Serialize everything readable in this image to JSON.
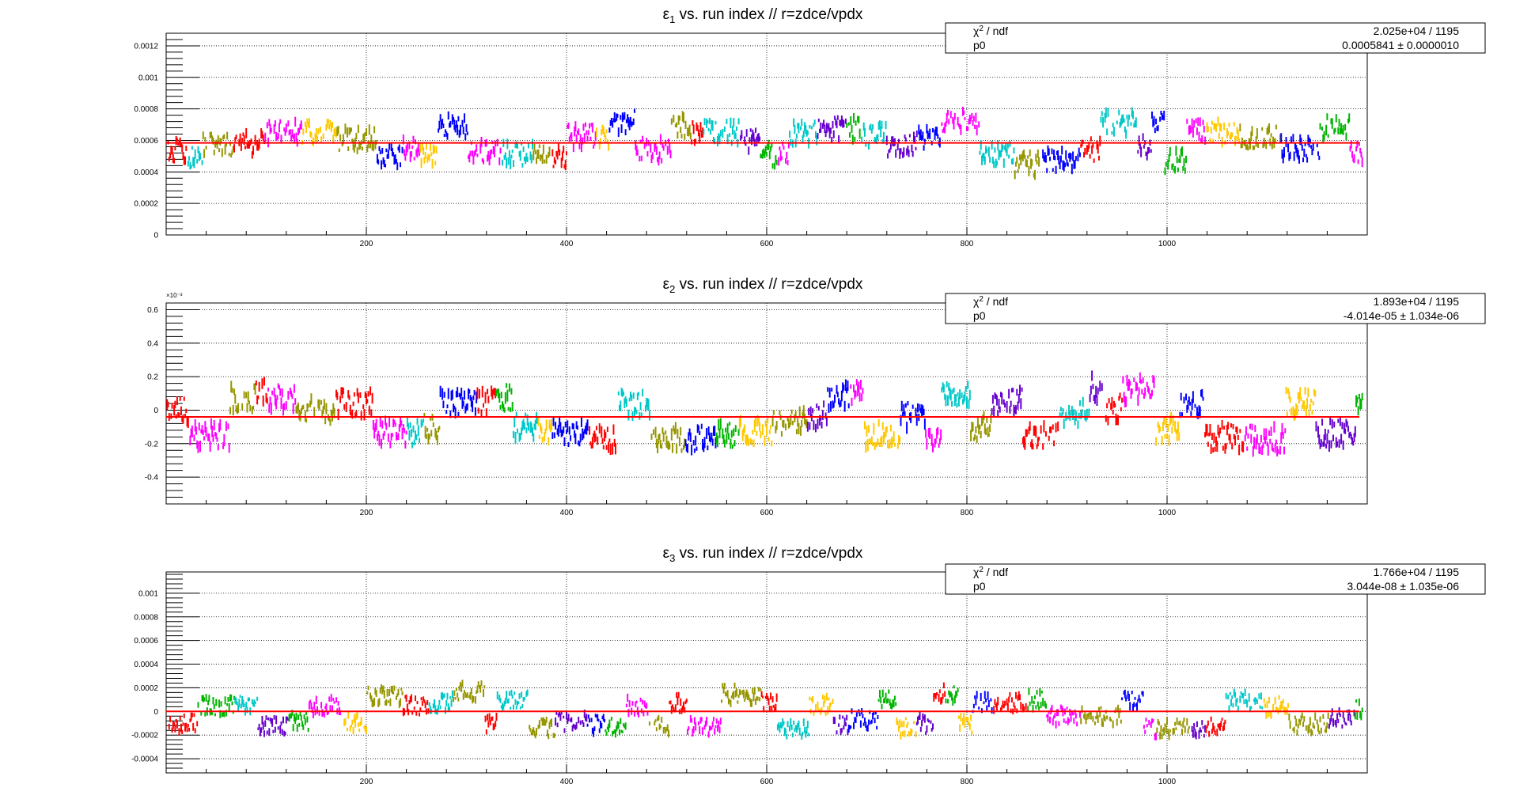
{
  "chart_data": [
    {
      "type": "scatter",
      "title_symbol": "ε",
      "title_subscript": "1",
      "title_rest": " vs. run index // r=zdce/vpdx",
      "xlabel": "",
      "ylabel": "",
      "xlim": [
        0,
        1200
      ],
      "ylim": [
        0,
        0.00128
      ],
      "xticks": [
        200,
        400,
        600,
        800,
        1000
      ],
      "xtick_labels": [
        "200",
        "400",
        "600",
        "800",
        "1000"
      ],
      "yticks": [
        0,
        0.0002,
        0.0004,
        0.0006,
        0.0008,
        0.001,
        0.0012
      ],
      "ytick_labels": [
        "0",
        "0.0002",
        "0.0004",
        "0.0006",
        "0.0008",
        "0.001",
        "0.0012"
      ],
      "y_exponent_label": "",
      "grid": true,
      "fit": {
        "name": "p0",
        "value": 0.0005841,
        "color": "#ff0000"
      },
      "stats": {
        "row1_label_base": "χ",
        "row1_label_sup": "2",
        "row1_label_rest": " / ndf",
        "row1_value": "2.025e+04 / 1195",
        "row2_label": "p0",
        "row2_value": "0.0005841 ± 0.0000010"
      },
      "series_note": "colored error bars, one color per run block",
      "data_profile": {
        "center": 0.00058,
        "spread": 0.00013,
        "seed": 11
      }
    },
    {
      "type": "scatter",
      "title_symbol": "ε",
      "title_subscript": "2",
      "title_rest": " vs. run index // r=zdce/vpdx",
      "xlabel": "",
      "ylabel": "",
      "xlim": [
        0,
        1200
      ],
      "ylim": [
        -0.56,
        0.64
      ],
      "xticks": [
        200,
        400,
        600,
        800,
        1000
      ],
      "xtick_labels": [
        "200",
        "400",
        "600",
        "800",
        "1000"
      ],
      "yticks": [
        -0.4,
        -0.2,
        0,
        0.2,
        0.4,
        0.6
      ],
      "ytick_labels": [
        "-0.4",
        "-0.2",
        "0",
        "0.2",
        "0.4",
        "0.6"
      ],
      "y_exponent_label": "×10⁻³",
      "grid": true,
      "fit": {
        "name": "p0",
        "value": -0.04014,
        "color": "#ff0000"
      },
      "stats": {
        "row1_label_base": "χ",
        "row1_label_sup": "2",
        "row1_label_rest": " / ndf",
        "row1_value": "1.893e+04 / 1195",
        "row2_label": "p0",
        "row2_value": "-4.014e-05 ± 1.034e-06"
      },
      "series_note": "colored error bars, one color per run block",
      "data_profile": {
        "center": -0.02,
        "spread": 0.14,
        "seed": 23
      }
    },
    {
      "type": "scatter",
      "title_symbol": "ε",
      "title_subscript": "3",
      "title_rest": " vs. run index // r=zdce/vpdx",
      "xlabel": "",
      "ylabel": "",
      "xlim": [
        0,
        1200
      ],
      "ylim": [
        -0.00052,
        0.00118
      ],
      "xticks": [
        200,
        400,
        600,
        800,
        1000
      ],
      "xtick_labels": [
        "200",
        "400",
        "600",
        "800",
        "1000"
      ],
      "yticks": [
        -0.0004,
        -0.0002,
        0,
        0.0002,
        0.0004,
        0.0006,
        0.0008,
        0.001
      ],
      "ytick_labels": [
        "-0.0004",
        "-0.0002",
        "0",
        "0.0002",
        "0.0004",
        "0.0006",
        "0.0008",
        "0.001"
      ],
      "y_exponent_label": "",
      "grid": true,
      "fit": {
        "name": "p0",
        "value": 3.044e-08,
        "color": "#ff0000"
      },
      "stats": {
        "row1_label_base": "χ",
        "row1_label_sup": "2",
        "row1_label_rest": " / ndf",
        "row1_value": "1.766e+04 / 1195",
        "row2_label": "p0",
        "row2_value": "3.044e-08 ± 1.035e-06"
      },
      "series_note": "colored error bars, one color per run block",
      "data_profile": {
        "center": 1e-05,
        "spread": 0.00014,
        "seed": 37
      }
    }
  ],
  "palette": [
    "#0000ff",
    "#ff0000",
    "#00b400",
    "#ff00ff",
    "#00c8c8",
    "#ffc800",
    "#969600",
    "#6600cc"
  ]
}
